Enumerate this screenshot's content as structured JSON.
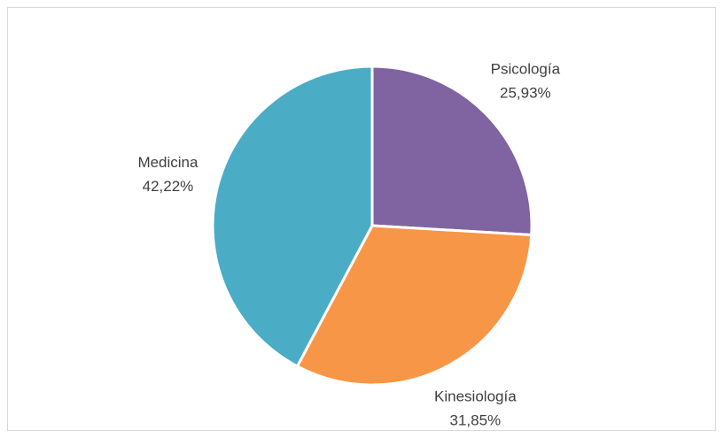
{
  "chart_data": {
    "type": "pie",
    "categories": [
      "Psicología",
      "Kinesiología",
      "Medicina"
    ],
    "values": [
      25.93,
      31.85,
      42.22
    ],
    "value_labels": [
      "25,93%",
      "31,85%",
      "42,22%"
    ],
    "colors": [
      "#8064a2",
      "#f79646",
      "#4bacc6"
    ]
  }
}
